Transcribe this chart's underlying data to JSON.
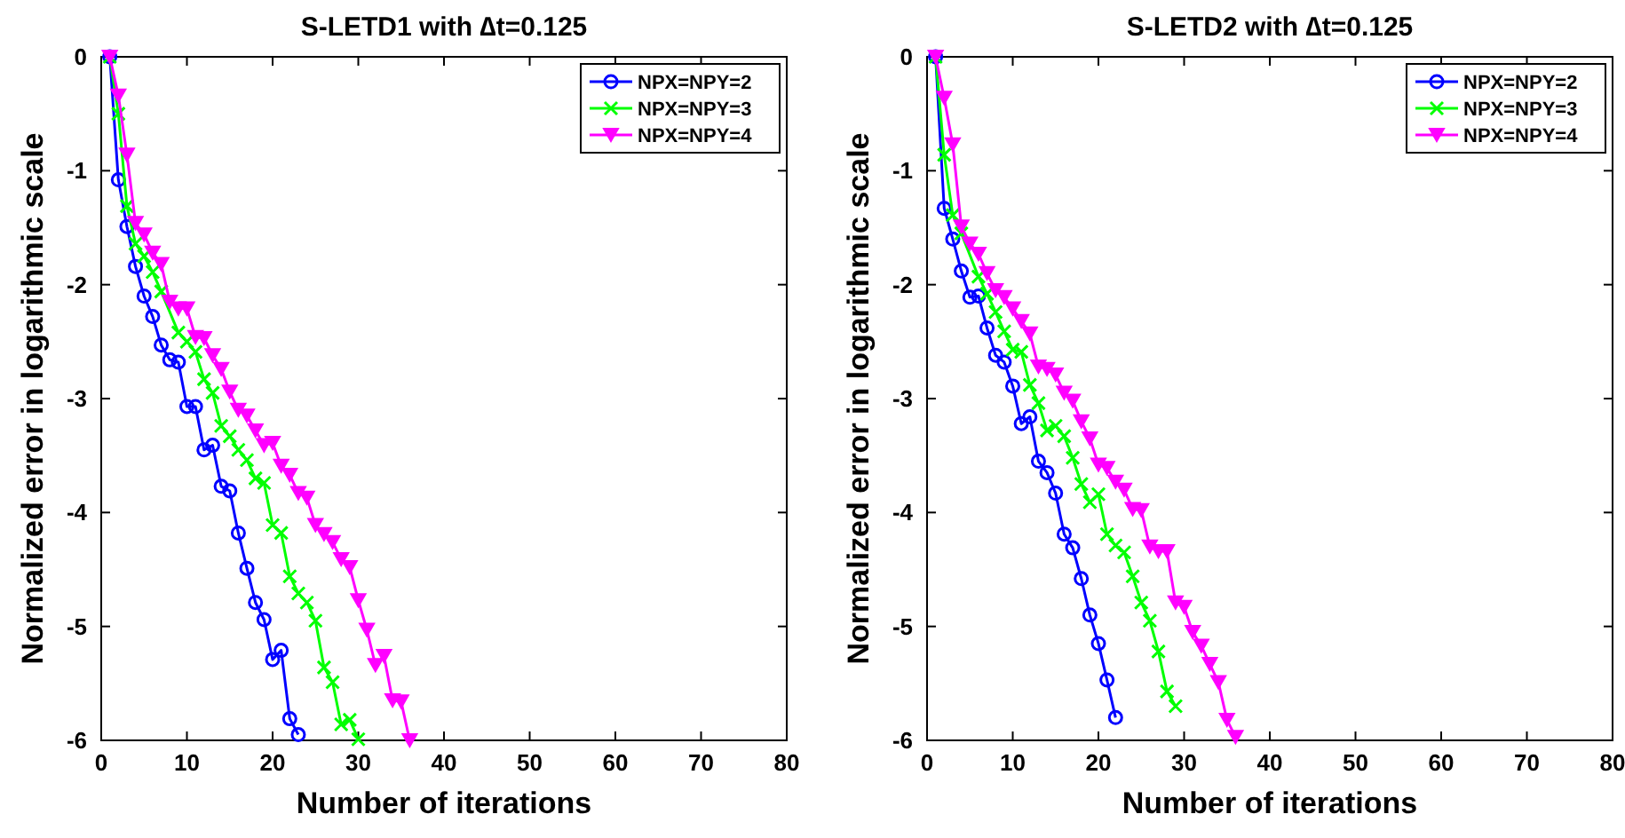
{
  "chart_data": [
    {
      "type": "line",
      "title": "S-LETD1 with ∆t=0.125",
      "xlabel": "Number of iterations",
      "ylabel": "Normalized error in logarithmic scale",
      "xlim": [
        0,
        80
      ],
      "xticks": [
        0,
        10,
        20,
        30,
        40,
        50,
        60,
        70,
        80
      ],
      "ylim": [
        -6,
        0
      ],
      "yticks": [
        -6,
        -5,
        -4,
        -3,
        -2,
        -1,
        0
      ],
      "grid": false,
      "legend": "top right",
      "line_style": "solid",
      "series": [
        {
          "name": "NPX=NPY=2",
          "color": "#0000ff",
          "marker": "circle",
          "x": [
            1,
            2,
            3,
            4,
            5,
            6,
            7,
            8,
            9,
            10,
            11,
            12,
            13,
            14,
            15,
            16,
            17,
            18,
            19,
            20,
            21,
            22,
            23
          ],
          "values": [
            0,
            -1.08,
            -1.49,
            -1.84,
            -2.1,
            -2.28,
            -2.53,
            -2.66,
            -2.68,
            -3.07,
            -3.07,
            -3.45,
            -3.41,
            -3.77,
            -3.81,
            -4.18,
            -4.49,
            -4.79,
            -4.94,
            -5.29,
            -5.21,
            -5.81,
            -5.95
          ]
        },
        {
          "name": "NPX=NPY=3",
          "color": "#00ff00",
          "marker": "cross",
          "x": [
            1,
            2,
            3,
            4,
            5,
            6,
            7,
            8,
            9,
            10,
            11,
            12,
            13,
            14,
            15,
            16,
            17,
            18,
            19,
            20,
            21,
            22,
            23,
            24,
            25,
            26,
            27,
            28,
            29,
            30
          ],
          "values": [
            0,
            -0.5,
            -1.31,
            -1.64,
            -1.75,
            -1.89,
            -2.06,
            null,
            -2.42,
            -2.5,
            -2.59,
            -2.83,
            -2.95,
            -3.24,
            -3.33,
            -3.45,
            -3.54,
            -3.7,
            -3.74,
            -4.11,
            -4.18,
            -4.56,
            -4.71,
            -4.79,
            -4.95,
            -5.36,
            -5.49,
            -5.86,
            -5.82,
            -5.99
          ]
        },
        {
          "name": "NPX=NPY=4",
          "color": "#ff00ff",
          "marker": "triangle",
          "x": [
            1,
            2,
            3,
            4,
            5,
            6,
            7,
            8,
            9,
            10,
            11,
            12,
            13,
            14,
            15,
            16,
            17,
            18,
            19,
            20,
            21,
            22,
            23,
            24,
            25,
            26,
            27,
            28,
            29,
            30,
            31,
            32,
            33,
            34,
            35,
            36
          ],
          "values": [
            0,
            -0.34,
            -0.86,
            -1.46,
            -1.56,
            -1.72,
            -1.82,
            -2.15,
            -2.21,
            -2.21,
            -2.46,
            -2.47,
            -2.62,
            -2.74,
            -2.94,
            -3.1,
            -3.15,
            -3.28,
            -3.41,
            -3.39,
            -3.59,
            -3.67,
            -3.83,
            -3.87,
            -4.11,
            -4.19,
            -4.26,
            -4.41,
            -4.48,
            -4.77,
            -5.03,
            -5.34,
            -5.26,
            -5.65,
            -5.66,
            -6
          ]
        }
      ]
    },
    {
      "type": "line",
      "title": "S-LETD2 with ∆t=0.125",
      "xlabel": "Number of iterations",
      "ylabel": "Normalized error in logarithmic scale",
      "xlim": [
        0,
        80
      ],
      "xticks": [
        0,
        10,
        20,
        30,
        40,
        50,
        60,
        70,
        80
      ],
      "ylim": [
        -6,
        0
      ],
      "yticks": [
        -6,
        -5,
        -4,
        -3,
        -2,
        -1,
        0
      ],
      "grid": false,
      "legend": "top right",
      "line_style": "solid",
      "series": [
        {
          "name": "NPX=NPY=2",
          "color": "#0000ff",
          "marker": "circle",
          "x": [
            1,
            2,
            3,
            4,
            5,
            6,
            7,
            8,
            9,
            10,
            11,
            12,
            13,
            14,
            15,
            16,
            17,
            18,
            19,
            20,
            21,
            22
          ],
          "values": [
            0,
            -1.33,
            -1.6,
            -1.88,
            -2.11,
            -2.1,
            -2.38,
            -2.62,
            -2.68,
            -2.89,
            -3.22,
            -3.16,
            -3.55,
            -3.65,
            -3.83,
            -4.19,
            -4.31,
            -4.58,
            -4.9,
            -5.15,
            -5.47,
            -5.8
          ]
        },
        {
          "name": "NPX=NPY=3",
          "color": "#00ff00",
          "marker": "cross",
          "x": [
            1,
            2,
            3,
            4,
            5,
            6,
            7,
            8,
            9,
            10,
            11,
            12,
            13,
            14,
            15,
            16,
            17,
            18,
            19,
            20,
            21,
            22,
            23,
            24,
            25,
            26,
            27,
            28,
            29
          ],
          "values": [
            0,
            -0.86,
            -1.39,
            -1.55,
            null,
            -1.93,
            -2.08,
            -2.24,
            -2.41,
            -2.57,
            -2.59,
            -2.88,
            -3.04,
            -3.28,
            -3.24,
            -3.33,
            -3.52,
            -3.75,
            -3.91,
            -3.84,
            -4.19,
            -4.29,
            -4.35,
            -4.56,
            -4.79,
            -4.95,
            -5.22,
            -5.57,
            -5.7
          ]
        },
        {
          "name": "NPX=NPY=4",
          "color": "#ff00ff",
          "marker": "triangle",
          "x": [
            1,
            2,
            3,
            4,
            5,
            6,
            7,
            8,
            9,
            10,
            11,
            12,
            13,
            14,
            15,
            16,
            17,
            18,
            19,
            20,
            21,
            22,
            23,
            24,
            25,
            26,
            27,
            28,
            29,
            30,
            31,
            32,
            33,
            34,
            35,
            36
          ],
          "values": [
            0,
            -0.36,
            -0.77,
            -1.49,
            -1.64,
            -1.73,
            -1.9,
            -2.05,
            -2.11,
            -2.21,
            -2.32,
            -2.43,
            -2.72,
            -2.74,
            -2.79,
            -2.95,
            -3.02,
            -3.2,
            -3.35,
            -3.58,
            -3.61,
            -3.73,
            -3.8,
            -3.97,
            -3.98,
            -4.3,
            -4.34,
            -4.34,
            -4.79,
            -4.83,
            -5.05,
            -5.17,
            -5.33,
            -5.49,
            -5.82,
            -5.97
          ]
        }
      ]
    }
  ]
}
